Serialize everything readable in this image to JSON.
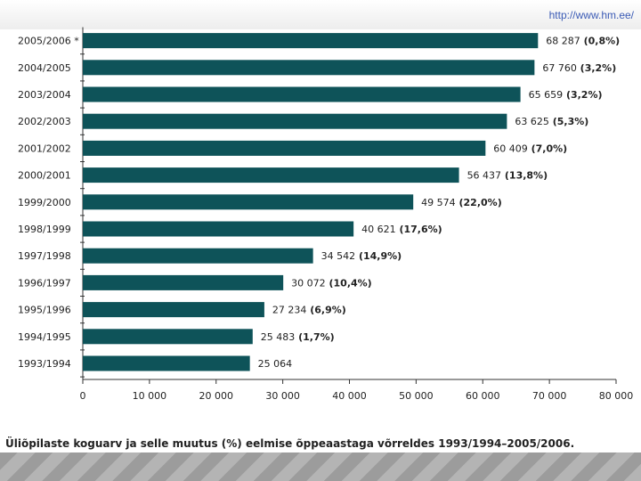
{
  "header": {
    "url": "http://www.hm.ee/"
  },
  "caption": "Üliõpilaste koguarv ja selle muutus (%) eelmise õppeaastaga võrreldes 1993/1994–2005/2006.",
  "colors": {
    "bar": "#0e5359",
    "axis": "#333333",
    "text": "#222222"
  },
  "chart_data": {
    "type": "bar",
    "orientation": "horizontal",
    "title": "",
    "xlabel": "",
    "ylabel": "",
    "xlim": [
      0,
      80000
    ],
    "x_ticks": [
      "0",
      "10 000",
      "20 000",
      "30 000",
      "40 000",
      "50 000",
      "60 000",
      "70 000",
      "80 000"
    ],
    "x_tick_values": [
      0,
      10000,
      20000,
      30000,
      40000,
      50000,
      60000,
      70000,
      80000
    ],
    "categories": [
      "2005/2006 *",
      "2004/2005",
      "2003/2004",
      "2002/2003",
      "2001/2002",
      "2000/2001",
      "1999/2000",
      "1998/1999",
      "1997/1998",
      "1996/1997",
      "1995/1996",
      "1994/1995",
      "1993/1994"
    ],
    "values": [
      68287,
      67760,
      65659,
      63625,
      60409,
      56437,
      49574,
      40621,
      34542,
      30072,
      27234,
      25483,
      25064
    ],
    "value_labels": [
      "68 287",
      "67 760",
      "65 659",
      "63 625",
      "60 409",
      "56 437",
      "49 574",
      "40 621",
      "34 542",
      "30 072",
      "27 234",
      "25 483",
      "25 064"
    ],
    "change_labels": [
      "(0,8%)",
      "(3,2%)",
      "(3,2%)",
      "(5,3%)",
      "(7,0%)",
      "(13,8%)",
      "(22,0%)",
      "(17,6%)",
      "(14,9%)",
      "(10,4%)",
      "(6,9%)",
      "(1,7%)",
      ""
    ]
  }
}
